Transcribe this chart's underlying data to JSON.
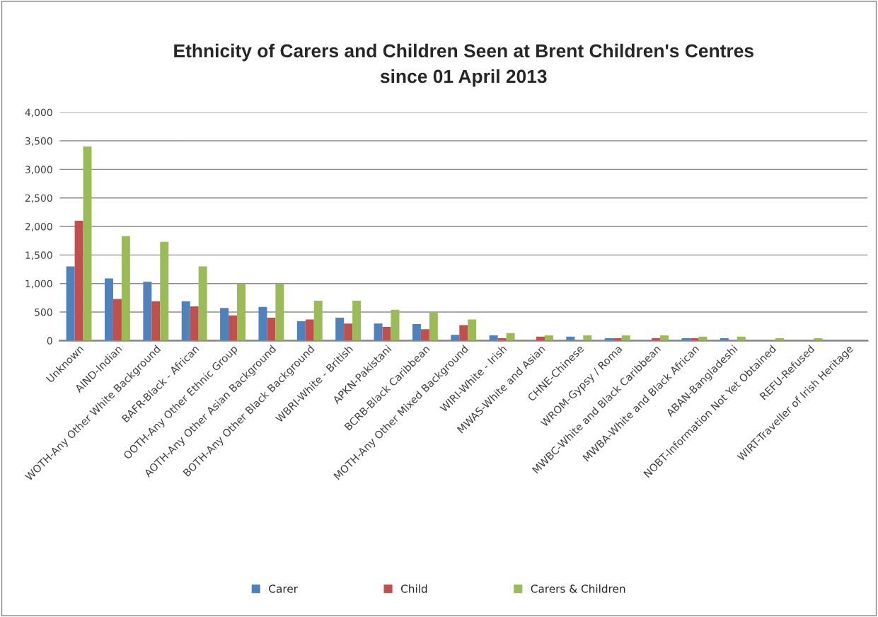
{
  "chart_data": {
    "type": "bar",
    "title": "Ethnicity of Carers and Children Seen at Brent Children's Centres\nsince 01 April 2013",
    "categories": [
      "Unknown",
      "AIND-Indian",
      "WOTH-Any Other White Background",
      "BAFR-Black - African",
      "OOTH-Any Other Ethnic Group",
      "AOTH-Any Other Asian Background",
      "BOTH-Any Other Black Background",
      "WBRI-White - British",
      "APKN-Pakistani",
      "BCRB-Black Caribbean",
      "MOTH-Any Other Mixed Background",
      "WIRI-White - Irish",
      "MWAS-White and Asian",
      "CHNE-Chinese",
      "WROM-Gypsy / Roma",
      "MWBC-White and Black Caribbean",
      "MWBA-White and Black African",
      "ABAN-Bangladeshi",
      "NOBT-Information Not Yet Obtained",
      "REFU-Refused",
      "WIRT-Traveller of Irish Heritage"
    ],
    "series": [
      {
        "name": "Carer",
        "color": "#4f81bd",
        "values": [
          1300,
          1090,
          1030,
          690,
          570,
          590,
          340,
          400,
          300,
          290,
          100,
          90,
          null,
          70,
          40,
          null,
          40,
          40,
          null,
          null,
          null
        ]
      },
      {
        "name": "Child",
        "color": "#c0504d",
        "values": [
          2100,
          730,
          690,
          600,
          440,
          400,
          370,
          300,
          240,
          200,
          270,
          40,
          70,
          null,
          40,
          40,
          40,
          null,
          null,
          null,
          null
        ]
      },
      {
        "name": "Carers & Children",
        "color": "#9bbb59",
        "values": [
          3400,
          1830,
          1730,
          1300,
          1000,
          1000,
          700,
          700,
          540,
          500,
          370,
          130,
          90,
          90,
          90,
          90,
          70,
          70,
          40,
          40,
          null
        ]
      }
    ],
    "ylim": [
      0,
      4000
    ],
    "yticks": [
      {
        "value": 0,
        "label": "0"
      },
      {
        "value": 500,
        "label": "500"
      },
      {
        "value": 1000,
        "label": "1,000"
      },
      {
        "value": 1500,
        "label": "1,500"
      },
      {
        "value": 2000,
        "label": "2,000"
      },
      {
        "value": 2500,
        "label": "2,500"
      },
      {
        "value": 3000,
        "label": "3,000"
      },
      {
        "value": 3500,
        "label": "3,500"
      },
      {
        "value": 4000,
        "label": "4,000"
      }
    ],
    "grid": "y",
    "legend": "bottom"
  }
}
